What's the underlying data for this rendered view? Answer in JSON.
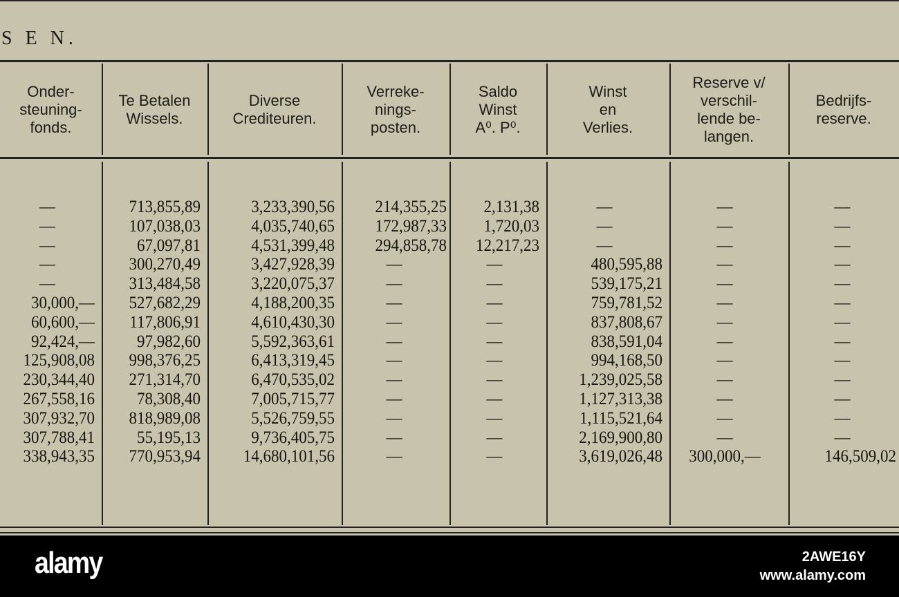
{
  "title": "S E N.",
  "headers": [
    "Onder-\nsteuning-\nfonds.",
    "Te Betalen\nWissels.",
    "Diverse\nCrediteuren.",
    "Verreke-\nnings-\nposten.",
    "Saldo\nWinst\nA⁰. P⁰.",
    "Winst\nen\nVerlies.",
    "Reserve v/\nverschil-\nlende be-\nlangen.",
    "Bedrijfs-\nreserve."
  ],
  "columns": [
    [
      "—",
      "—",
      "—",
      "—",
      "—",
      "30,000,—",
      "60,600,—",
      "92,424,—",
      "125,908,08",
      "230,344,40",
      "267,558,16",
      "307,932,70",
      "307,788,41",
      "338,943,35"
    ],
    [
      "713,855,89",
      "107,038,03",
      "67,097,81",
      "300,270,49",
      "313,484,58",
      "527,682,29",
      "117,806,91",
      "97,982,60",
      "998,376,25",
      "271,314,70",
      "78,308,40",
      "818,989,08",
      "55,195,13",
      "770,953,94"
    ],
    [
      "3,233,390,56",
      "4,035,740,65",
      "4,531,399,48",
      "3,427,928,39",
      "3,220,075,37",
      "4,188,200,35",
      "4,610,430,30",
      "5,592,363,61",
      "6,413,319,45",
      "6,470,535,02",
      "7,005,715,77",
      "5,526,759,55",
      "9,736,405,75",
      "14,680,101,56"
    ],
    [
      "214,355,25",
      "172,987,33",
      "294,858,78",
      "—",
      "—",
      "—",
      "—",
      "—",
      "—",
      "—",
      "—",
      "—",
      "—",
      "—"
    ],
    [
      "2,131,38",
      "1,720,03",
      "12,217,23",
      "—",
      "—",
      "—",
      "—",
      "—",
      "—",
      "—",
      "—",
      "—",
      "—",
      "—"
    ],
    [
      "—",
      "—",
      "—",
      "480,595,88",
      "539,175,21",
      "759,781,52",
      "837,808,67",
      "838,591,04",
      "994,168,50",
      "1,239,025,58",
      "1,127,313,38",
      "1,115,521,64",
      "2,169,900,80",
      "3,619,026,48"
    ],
    [
      "—",
      "—",
      "—",
      "—",
      "—",
      "—",
      "—",
      "—",
      "—",
      "—",
      "—",
      "—",
      "—",
      "300,000,—"
    ],
    [
      "—",
      "—",
      "—",
      "—",
      "—",
      "—",
      "—",
      "—",
      "—",
      "—",
      "—",
      "—",
      "—",
      "146,509,02"
    ]
  ],
  "watermark": {
    "logo": "alamy",
    "url": "www.alamy.com",
    "id": "2AWE16Y"
  }
}
